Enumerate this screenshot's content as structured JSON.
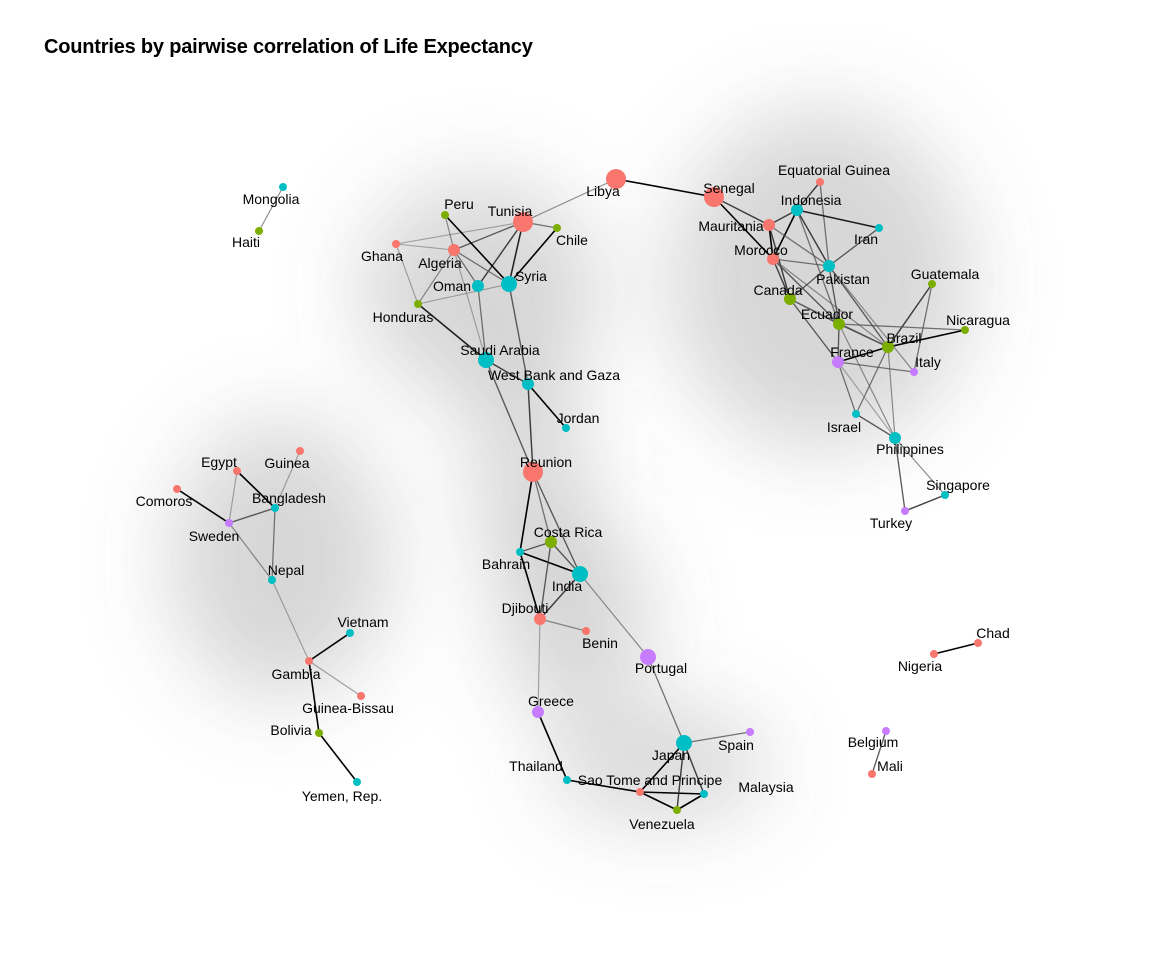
{
  "title": "Countries by pairwise correlation of Life Expectancy",
  "colors": {
    "red": "#f8766d",
    "green": "#7cae00",
    "teal": "#00bfc4",
    "purple": "#c77cff"
  },
  "chart_data": {
    "type": "network",
    "nodes": [
      {
        "id": "Mongolia",
        "label": "Mongolia",
        "group": "teal",
        "size": 1
      },
      {
        "id": "Haiti",
        "label": "Haiti",
        "group": "green",
        "size": 1
      },
      {
        "id": "Libya",
        "label": "Libya",
        "group": "red",
        "size": 4
      },
      {
        "id": "Tunisia",
        "label": "Tunisia",
        "group": "red",
        "size": 4
      },
      {
        "id": "Peru",
        "label": "Peru",
        "group": "green",
        "size": 1
      },
      {
        "id": "Chile",
        "label": "Chile",
        "group": "green",
        "size": 1
      },
      {
        "id": "Ghana",
        "label": "Ghana",
        "group": "red",
        "size": 1
      },
      {
        "id": "Algeria",
        "label": "Algeria",
        "group": "red",
        "size": 2
      },
      {
        "id": "Oman",
        "label": "Oman",
        "group": "teal",
        "size": 2
      },
      {
        "id": "Syria",
        "label": "Syria",
        "group": "teal",
        "size": 3
      },
      {
        "id": "Honduras",
        "label": "Honduras",
        "group": "green",
        "size": 1
      },
      {
        "id": "Saudi Arabia",
        "label": "Saudi Arabia",
        "group": "teal",
        "size": 3
      },
      {
        "id": "West Bank and Gaza",
        "label": "West Bank and Gaza",
        "group": "teal",
        "size": 2
      },
      {
        "id": "Jordan",
        "label": "Jordan",
        "group": "teal",
        "size": 1
      },
      {
        "id": "Reunion",
        "label": "Reunion",
        "group": "red",
        "size": 4
      },
      {
        "id": "Senegal",
        "label": "Senegal",
        "group": "red",
        "size": 4
      },
      {
        "id": "Equatorial Guinea",
        "label": "Equatorial Guinea",
        "group": "red",
        "size": 1
      },
      {
        "id": "Indonesia",
        "label": "Indonesia",
        "group": "teal",
        "size": 2
      },
      {
        "id": "Mauritania",
        "label": "Mauritania",
        "group": "red",
        "size": 2
      },
      {
        "id": "Iran",
        "label": "Iran",
        "group": "teal",
        "size": 1
      },
      {
        "id": "Morocco",
        "label": "Morocco",
        "group": "red",
        "size": 2
      },
      {
        "id": "Pakistan",
        "label": "Pakistan",
        "group": "teal",
        "size": 2
      },
      {
        "id": "Canada",
        "label": "Canada",
        "group": "green",
        "size": 2
      },
      {
        "id": "Guatemala",
        "label": "Guatemala",
        "group": "green",
        "size": 1
      },
      {
        "id": "Ecuador",
        "label": "Ecuador",
        "group": "green",
        "size": 2
      },
      {
        "id": "Nicaragua",
        "label": "Nicaragua",
        "group": "green",
        "size": 1
      },
      {
        "id": "Brazil",
        "label": "Brazil",
        "group": "green",
        "size": 2
      },
      {
        "id": "France",
        "label": "France",
        "group": "purple",
        "size": 2
      },
      {
        "id": "Italy",
        "label": "Italy",
        "group": "purple",
        "size": 1
      },
      {
        "id": "Israel",
        "label": "Israel",
        "group": "teal",
        "size": 1
      },
      {
        "id": "Philippines",
        "label": "Philippines",
        "group": "teal",
        "size": 2
      },
      {
        "id": "Singapore",
        "label": "Singapore",
        "group": "teal",
        "size": 1
      },
      {
        "id": "Turkey",
        "label": "Turkey",
        "group": "purple",
        "size": 1
      },
      {
        "id": "Egypt",
        "label": "Egypt",
        "group": "red",
        "size": 1
      },
      {
        "id": "Guinea",
        "label": "Guinea",
        "group": "red",
        "size": 1
      },
      {
        "id": "Comoros",
        "label": "Comoros",
        "group": "red",
        "size": 1
      },
      {
        "id": "Bangladesh",
        "label": "Bangladesh",
        "group": "teal",
        "size": 1
      },
      {
        "id": "Sweden",
        "label": "Sweden",
        "group": "purple",
        "size": 1
      },
      {
        "id": "Nepal",
        "label": "Nepal",
        "group": "teal",
        "size": 1
      },
      {
        "id": "Vietnam",
        "label": "Vietnam",
        "group": "teal",
        "size": 1
      },
      {
        "id": "Gambia",
        "label": "Gambia",
        "group": "red",
        "size": 1
      },
      {
        "id": "Guinea-Bissau",
        "label": "Guinea-Bissau",
        "group": "red",
        "size": 1
      },
      {
        "id": "Bolivia",
        "label": "Bolivia",
        "group": "green",
        "size": 1
      },
      {
        "id": "Yemen, Rep.",
        "label": "Yemen, Rep.",
        "group": "teal",
        "size": 1
      },
      {
        "id": "Costa Rica",
        "label": "Costa Rica",
        "group": "green",
        "size": 2
      },
      {
        "id": "Bahrain",
        "label": "Bahrain",
        "group": "teal",
        "size": 1
      },
      {
        "id": "India",
        "label": "India",
        "group": "teal",
        "size": 3
      },
      {
        "id": "Djibouti",
        "label": "Djibouti",
        "group": "red",
        "size": 2
      },
      {
        "id": "Benin",
        "label": "Benin",
        "group": "red",
        "size": 1
      },
      {
        "id": "Portugal",
        "label": "Portugal",
        "group": "purple",
        "size": 3
      },
      {
        "id": "Greece",
        "label": "Greece",
        "group": "purple",
        "size": 2
      },
      {
        "id": "Thailand",
        "label": "Thailand",
        "group": "teal",
        "size": 1
      },
      {
        "id": "Sao Tome and Principe",
        "label": "Sao Tome and Principe",
        "group": "red",
        "size": 1
      },
      {
        "id": "Japan",
        "label": "Japan",
        "group": "teal",
        "size": 3
      },
      {
        "id": "Spain",
        "label": "Spain",
        "group": "purple",
        "size": 1
      },
      {
        "id": "Malaysia",
        "label": "Malaysia",
        "group": "teal",
        "size": 1
      },
      {
        "id": "Venezuela",
        "label": "Venezuela",
        "group": "green",
        "size": 1
      },
      {
        "id": "Chad",
        "label": "Chad",
        "group": "red",
        "size": 1
      },
      {
        "id": "Nigeria",
        "label": "Nigeria",
        "group": "red",
        "size": 1
      },
      {
        "id": "Belgium",
        "label": "Belgium",
        "group": "purple",
        "size": 1
      },
      {
        "id": "Mali",
        "label": "Mali",
        "group": "red",
        "size": 1
      }
    ],
    "edges": [
      {
        "source": "Mongolia",
        "target": "Haiti",
        "strength": 0.5
      },
      {
        "source": "Libya",
        "target": "Tunisia",
        "strength": 0.5
      },
      {
        "source": "Libya",
        "target": "Senegal",
        "strength": 1.0
      },
      {
        "source": "Tunisia",
        "target": "Algeria",
        "strength": 0.7
      },
      {
        "source": "Tunisia",
        "target": "Chile",
        "strength": 0.6
      },
      {
        "source": "Tunisia",
        "target": "Syria",
        "strength": 0.9
      },
      {
        "source": "Tunisia",
        "target": "Oman",
        "strength": 0.8
      },
      {
        "source": "Tunisia",
        "target": "Ghana",
        "strength": 0.4
      },
      {
        "source": "Peru",
        "target": "Algeria",
        "strength": 0.5
      },
      {
        "source": "Peru",
        "target": "Syria",
        "strength": 1.0
      },
      {
        "source": "Chile",
        "target": "Syria",
        "strength": 1.0
      },
      {
        "source": "Ghana",
        "target": "Algeria",
        "strength": 0.4
      },
      {
        "source": "Ghana",
        "target": "Honduras",
        "strength": 0.4
      },
      {
        "source": "Algeria",
        "target": "Oman",
        "strength": 0.6
      },
      {
        "source": "Algeria",
        "target": "Syria",
        "strength": 0.6
      },
      {
        "source": "Algeria",
        "target": "Honduras",
        "strength": 0.5
      },
      {
        "source": "Algeria",
        "target": "Saudi Arabia",
        "strength": 0.4
      },
      {
        "source": "Syria",
        "target": "Honduras",
        "strength": 0.4
      },
      {
        "source": "Syria",
        "target": "West Bank and Gaza",
        "strength": 0.7
      },
      {
        "source": "Oman",
        "target": "Saudi Arabia",
        "strength": 0.6
      },
      {
        "source": "Honduras",
        "target": "Saudi Arabia",
        "strength": 0.9
      },
      {
        "source": "Saudi Arabia",
        "target": "Reunion",
        "strength": 0.7
      },
      {
        "source": "Saudi Arabia",
        "target": "West Bank and Gaza",
        "strength": 0.8
      },
      {
        "source": "West Bank and Gaza",
        "target": "Jordan",
        "strength": 1.0
      },
      {
        "source": "West Bank and Gaza",
        "target": "Reunion",
        "strength": 0.8
      },
      {
        "source": "Reunion",
        "target": "Bahrain",
        "strength": 1.0
      },
      {
        "source": "Reunion",
        "target": "Costa Rica",
        "strength": 0.6
      },
      {
        "source": "Reunion",
        "target": "India",
        "strength": 0.7
      },
      {
        "source": "Bahrain",
        "target": "Costa Rica",
        "strength": 0.7
      },
      {
        "source": "Bahrain",
        "target": "India",
        "strength": 1.0
      },
      {
        "source": "Bahrain",
        "target": "Djibouti",
        "strength": 1.0
      },
      {
        "source": "Costa Rica",
        "target": "India",
        "strength": 0.7
      },
      {
        "source": "Costa Rica",
        "target": "Djibouti",
        "strength": 0.7
      },
      {
        "source": "India",
        "target": "Djibouti",
        "strength": 0.8
      },
      {
        "source": "India",
        "target": "Portugal",
        "strength": 0.5
      },
      {
        "source": "Djibouti",
        "target": "Benin",
        "strength": 0.5
      },
      {
        "source": "Djibouti",
        "target": "Greece",
        "strength": 0.4
      },
      {
        "source": "Portugal",
        "target": "Japan",
        "strength": 0.6
      },
      {
        "source": "Greece",
        "target": "Thailand",
        "strength": 1.0
      },
      {
        "source": "Thailand",
        "target": "Sao Tome and Principe",
        "strength": 1.0
      },
      {
        "source": "Sao Tome and Principe",
        "target": "Japan",
        "strength": 1.0
      },
      {
        "source": "Sao Tome and Principe",
        "target": "Venezuela",
        "strength": 1.0
      },
      {
        "source": "Sao Tome and Principe",
        "target": "Malaysia",
        "strength": 1.0
      },
      {
        "source": "Japan",
        "target": "Spain",
        "strength": 0.6
      },
      {
        "source": "Japan",
        "target": "Venezuela",
        "strength": 0.8
      },
      {
        "source": "Japan",
        "target": "Malaysia",
        "strength": 0.8
      },
      {
        "source": "Venezuela",
        "target": "Malaysia",
        "strength": 1.0
      },
      {
        "source": "Senegal",
        "target": "Mauritania",
        "strength": 0.8
      },
      {
        "source": "Senegal",
        "target": "Morocco",
        "strength": 1.0
      },
      {
        "source": "Equatorial Guinea",
        "target": "Indonesia",
        "strength": 0.8
      },
      {
        "source": "Equatorial Guinea",
        "target": "Pakistan",
        "strength": 0.6
      },
      {
        "source": "Indonesia",
        "target": "Mauritania",
        "strength": 0.8
      },
      {
        "source": "Indonesia",
        "target": "Morocco",
        "strength": 1.0
      },
      {
        "source": "Indonesia",
        "target": "Iran",
        "strength": 0.9
      },
      {
        "source": "Indonesia",
        "target": "Pakistan",
        "strength": 0.8
      },
      {
        "source": "Indonesia",
        "target": "Ecuador",
        "strength": 0.6
      },
      {
        "source": "Mauritania",
        "target": "Morocco",
        "strength": 1.0
      },
      {
        "source": "Mauritania",
        "target": "Canada",
        "strength": 0.8
      },
      {
        "source": "Mauritania",
        "target": "Pakistan",
        "strength": 0.6
      },
      {
        "source": "Iran",
        "target": "Pakistan",
        "strength": 0.7
      },
      {
        "source": "Morocco",
        "target": "Pakistan",
        "strength": 0.6
      },
      {
        "source": "Morocco",
        "target": "Canada",
        "strength": 0.8
      },
      {
        "source": "Morocco",
        "target": "Ecuador",
        "strength": 0.7
      },
      {
        "source": "Morocco",
        "target": "Brazil",
        "strength": 0.5
      },
      {
        "source": "Pakistan",
        "target": "Canada",
        "strength": 0.7
      },
      {
        "source": "Pakistan",
        "target": "Ecuador",
        "strength": 0.7
      },
      {
        "source": "Pakistan",
        "target": "Brazil",
        "strength": 0.7
      },
      {
        "source": "Pakistan",
        "target": "Italy",
        "strength": 0.5
      },
      {
        "source": "Canada",
        "target": "Ecuador",
        "strength": 0.7
      },
      {
        "source": "Canada",
        "target": "Brazil",
        "strength": 0.5
      },
      {
        "source": "Canada",
        "target": "France",
        "strength": 0.7
      },
      {
        "source": "Guatemala",
        "target": "Brazil",
        "strength": 0.8
      },
      {
        "source": "Guatemala",
        "target": "Italy",
        "strength": 0.6
      },
      {
        "source": "Ecuador",
        "target": "Brazil",
        "strength": 0.7
      },
      {
        "source": "Ecuador",
        "target": "France",
        "strength": 0.7
      },
      {
        "source": "Ecuador",
        "target": "Nicaragua",
        "strength": 0.6
      },
      {
        "source": "Ecuador",
        "target": "Philippines",
        "strength": 0.5
      },
      {
        "source": "Nicaragua",
        "target": "Brazil",
        "strength": 1.0
      },
      {
        "source": "Brazil",
        "target": "France",
        "strength": 1.0
      },
      {
        "source": "Brazil",
        "target": "Israel",
        "strength": 0.6
      },
      {
        "source": "Brazil",
        "target": "Philippines",
        "strength": 0.5
      },
      {
        "source": "France",
        "target": "Israel",
        "strength": 0.6
      },
      {
        "source": "France",
        "target": "Philippines",
        "strength": 0.4
      },
      {
        "source": "France",
        "target": "Italy",
        "strength": 0.6
      },
      {
        "source": "Israel",
        "target": "Philippines",
        "strength": 0.7
      },
      {
        "source": "Philippines",
        "target": "Singapore",
        "strength": 0.5
      },
      {
        "source": "Philippines",
        "target": "Turkey",
        "strength": 0.7
      },
      {
        "source": "Singapore",
        "target": "Turkey",
        "strength": 0.8
      },
      {
        "source": "Egypt",
        "target": "Sweden",
        "strength": 0.4
      },
      {
        "source": "Egypt",
        "target": "Bangladesh",
        "strength": 1.0
      },
      {
        "source": "Guinea",
        "target": "Bangladesh",
        "strength": 0.4
      },
      {
        "source": "Comoros",
        "target": "Sweden",
        "strength": 1.0
      },
      {
        "source": "Sweden",
        "target": "Bangladesh",
        "strength": 0.7
      },
      {
        "source": "Bangladesh",
        "target": "Nepal",
        "strength": 0.6
      },
      {
        "source": "Sweden",
        "target": "Nepal",
        "strength": 0.5
      },
      {
        "source": "Nepal",
        "target": "Gambia",
        "strength": 0.4
      },
      {
        "source": "Gambia",
        "target": "Vietnam",
        "strength": 1.0
      },
      {
        "source": "Gambia",
        "target": "Guinea-Bissau",
        "strength": 0.4
      },
      {
        "source": "Gambia",
        "target": "Bolivia",
        "strength": 1.0
      },
      {
        "source": "Bolivia",
        "target": "Yemen, Rep.",
        "strength": 1.0
      },
      {
        "source": "Chad",
        "target": "Nigeria",
        "strength": 1.0
      },
      {
        "source": "Belgium",
        "target": "Mali",
        "strength": 0.7
      }
    ]
  }
}
